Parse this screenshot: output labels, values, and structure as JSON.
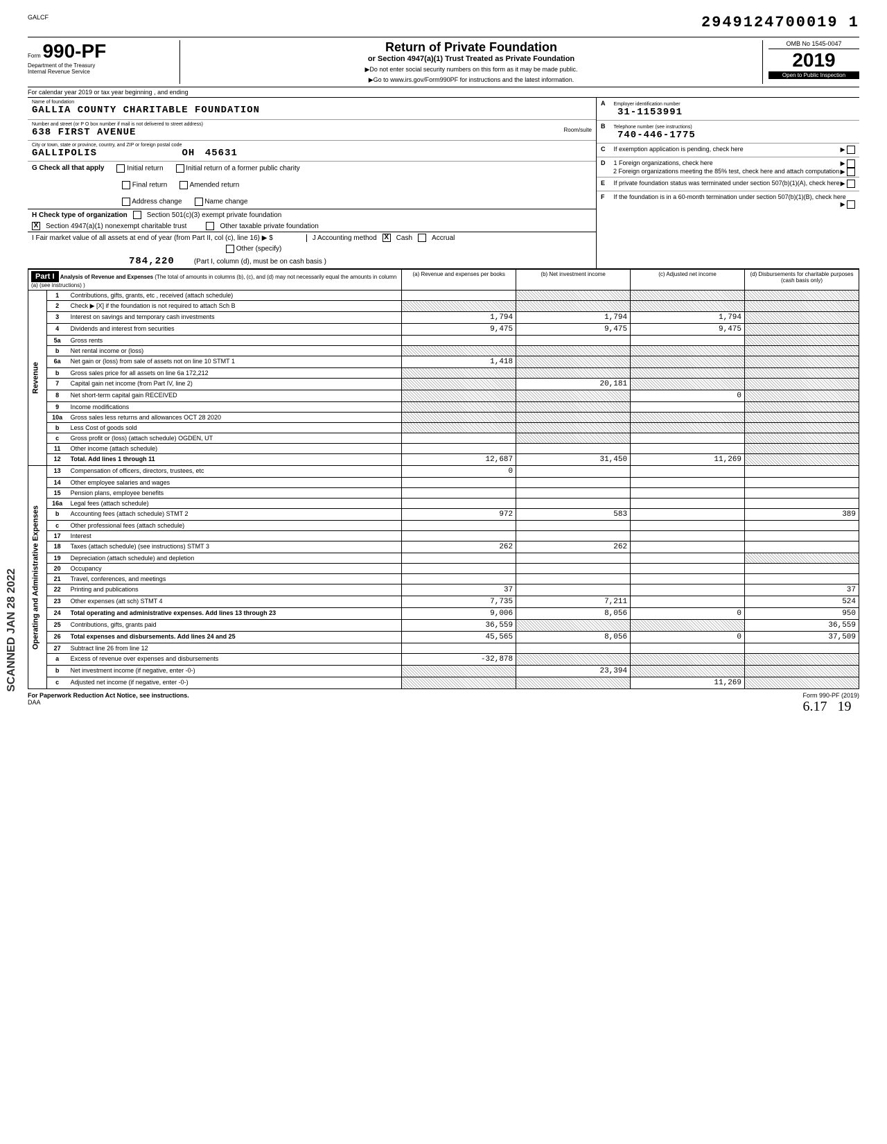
{
  "header": {
    "code_small": "GALCF",
    "tracking": "2949124700019 1",
    "form_prefix": "Form",
    "form_number": "990-PF",
    "dept": "Department of the Treasury",
    "irs": "Internal Revenue Service",
    "title": "Return of Private Foundation",
    "subtitle": "or Section 4947(a)(1) Trust Treated as Private Foundation",
    "instruction1": "▶Do not enter social security numbers on this form as it may be made public.",
    "instruction2": "▶Go to www.irs.gov/Form990PF for instructions and the latest information.",
    "omb": "OMB No 1545-0047",
    "year": "2019",
    "inspection": "Open to Public Inspection",
    "calendar": "For calendar year 2019 or tax year beginning                    , and ending"
  },
  "foundation": {
    "name_label": "Name of foundation",
    "name": "GALLIA COUNTY CHARITABLE FOUNDATION",
    "address_label": "Number and street (or P O box number if mail is not delivered to street address)",
    "address": "638 FIRST AVENUE",
    "city_label": "City or town, state or province, country, and ZIP or foreign postal code",
    "city": "GALLIPOLIS",
    "state": "OH",
    "zip": "45631",
    "room_label": "Room/suite",
    "ein_label": "Employer identification number",
    "ein_letter": "A",
    "ein": "31-1153991",
    "phone_label": "Telephone number (see instructions)",
    "phone_letter": "B",
    "phone": "740-446-1775",
    "exempt_label": "If exemption application is pending, check here",
    "exempt_letter": "C"
  },
  "checks": {
    "g_label": "G  Check all that apply",
    "g_items": [
      "Initial return",
      "Final return",
      "Address change",
      "Initial return of a former public charity",
      "Amended return",
      "Name change"
    ],
    "h_label": "H  Check type of organization",
    "h_items": [
      "Section 501(c)(3) exempt private foundation",
      "Section 4947(a)(1) nonexempt charitable trust",
      "Other taxable private foundation"
    ],
    "h_checked": 1,
    "i_label": "I   Fair market value of all assets at end of year (from Part II, col (c), line 16) ▶  $",
    "i_value": "784,220",
    "j_label": "J   Accounting method",
    "j_items": [
      "Cash",
      "Accrual",
      "Other (specify)"
    ],
    "j_note": "(Part I, column (d), must be on cash basis )",
    "d_letter": "D",
    "d1": "1  Foreign organizations, check here",
    "d2": "2  Foreign organizations meeting the 85% test, check here and attach computation",
    "e_letter": "E",
    "e_text": "If private foundation status was terminated under section 507(b)(1)(A), check here",
    "f_letter": "F",
    "f_text": "If the foundation is in a 60-month termination under section 507(b)(1)(B), check here"
  },
  "part1": {
    "header": "Part I",
    "analysis_title": "Analysis of Revenue and Expenses",
    "analysis_note": "(The total of amounts in columns (b), (c), and (d) may not necessarily equal the amounts in column (a) (see instructions) )",
    "col_a": "(a) Revenue and expenses per books",
    "col_b": "(b) Net investment income",
    "col_c": "(c) Adjusted net income",
    "col_d": "(d) Disbursements for charitable purposes (cash basis only)",
    "revenue_label": "Revenue",
    "opex_label": "Operating and Administrative Expenses"
  },
  "lines": [
    {
      "n": "1",
      "desc": "Contributions, gifts, grants, etc , received (attach schedule)",
      "a": "",
      "b": "shaded",
      "c": "shaded",
      "d": "shaded"
    },
    {
      "n": "2",
      "desc": "Check ▶  [X]  if the foundation is not required to attach Sch B",
      "a": "shaded",
      "b": "shaded",
      "c": "shaded",
      "d": "shaded"
    },
    {
      "n": "3",
      "desc": "Interest on savings and temporary cash investments",
      "a": "1,794",
      "b": "1,794",
      "c": "1,794",
      "d": "shaded"
    },
    {
      "n": "4",
      "desc": "Dividends and interest from securities",
      "a": "9,475",
      "b": "9,475",
      "c": "9,475",
      "d": "shaded"
    },
    {
      "n": "5a",
      "desc": "Gross rents",
      "a": "",
      "b": "",
      "c": "",
      "d": "shaded"
    },
    {
      "n": "b",
      "desc": "Net rental income or (loss)",
      "a": "shaded",
      "b": "shaded",
      "c": "shaded",
      "d": "shaded"
    },
    {
      "n": "6a",
      "desc": "Net gain or (loss) from sale of assets not on line 10    STMT 1",
      "a": "1,418",
      "b": "shaded",
      "c": "shaded",
      "d": "shaded"
    },
    {
      "n": "b",
      "desc": "Gross sales price for all assets on line 6a           172,212",
      "a": "shaded",
      "b": "shaded",
      "c": "shaded",
      "d": "shaded"
    },
    {
      "n": "7",
      "desc": "Capital gain net income (from Part IV, line 2)",
      "a": "shaded",
      "b": "20,181",
      "c": "shaded",
      "d": "shaded"
    },
    {
      "n": "8",
      "desc": "Net short-term capital gain                RECEIVED",
      "a": "shaded",
      "b": "shaded",
      "c": "0",
      "d": "shaded"
    },
    {
      "n": "9",
      "desc": "Income modifications",
      "a": "shaded",
      "b": "shaded",
      "c": "",
      "d": "shaded"
    },
    {
      "n": "10a",
      "desc": "Gross sales less returns and allowances    OCT 28 2020",
      "a": "shaded",
      "b": "shaded",
      "c": "shaded",
      "d": "shaded"
    },
    {
      "n": "b",
      "desc": "Less Cost of goods sold",
      "a": "shaded",
      "b": "shaded",
      "c": "shaded",
      "d": "shaded"
    },
    {
      "n": "c",
      "desc": "Gross profit or (loss) (attach schedule)     OGDEN, UT",
      "a": "",
      "b": "shaded",
      "c": "",
      "d": "shaded"
    },
    {
      "n": "11",
      "desc": "Other income (attach schedule)",
      "a": "",
      "b": "",
      "c": "",
      "d": "shaded"
    },
    {
      "n": "12",
      "desc": "Total. Add lines 1 through 11",
      "a": "12,687",
      "b": "31,450",
      "c": "11,269",
      "d": "shaded"
    },
    {
      "n": "13",
      "desc": "Compensation of officers, directors, trustees, etc",
      "a": "0",
      "b": "",
      "c": "",
      "d": ""
    },
    {
      "n": "14",
      "desc": "Other employee salaries and wages",
      "a": "",
      "b": "",
      "c": "",
      "d": ""
    },
    {
      "n": "15",
      "desc": "Pension plans, employee benefits",
      "a": "",
      "b": "",
      "c": "",
      "d": ""
    },
    {
      "n": "16a",
      "desc": "Legal fees (attach schedule)",
      "a": "",
      "b": "",
      "c": "",
      "d": ""
    },
    {
      "n": "b",
      "desc": "Accounting fees (attach schedule)       STMT 2",
      "a": "972",
      "b": "583",
      "c": "",
      "d": "389"
    },
    {
      "n": "c",
      "desc": "Other professional fees (attach schedule)",
      "a": "",
      "b": "",
      "c": "",
      "d": ""
    },
    {
      "n": "17",
      "desc": "Interest",
      "a": "",
      "b": "",
      "c": "",
      "d": ""
    },
    {
      "n": "18",
      "desc": "Taxes (attach schedule) (see instructions)    STMT 3",
      "a": "262",
      "b": "262",
      "c": "",
      "d": ""
    },
    {
      "n": "19",
      "desc": "Depreciation (attach schedule) and depletion",
      "a": "",
      "b": "",
      "c": "",
      "d": "shaded"
    },
    {
      "n": "20",
      "desc": "Occupancy",
      "a": "",
      "b": "",
      "c": "",
      "d": ""
    },
    {
      "n": "21",
      "desc": "Travel, conferences, and meetings",
      "a": "",
      "b": "",
      "c": "",
      "d": ""
    },
    {
      "n": "22",
      "desc": "Printing and publications",
      "a": "37",
      "b": "",
      "c": "",
      "d": "37"
    },
    {
      "n": "23",
      "desc": "Other expenses (att sch)              STMT 4",
      "a": "7,735",
      "b": "7,211",
      "c": "",
      "d": "524"
    },
    {
      "n": "24",
      "desc": "Total operating and administrative expenses. Add lines 13 through 23",
      "a": "9,006",
      "b": "8,056",
      "c": "0",
      "d": "950"
    },
    {
      "n": "25",
      "desc": "Contributions, gifts, grants paid",
      "a": "36,559",
      "b": "shaded",
      "c": "shaded",
      "d": "36,559"
    },
    {
      "n": "26",
      "desc": "Total expenses and disbursements. Add lines 24 and 25",
      "a": "45,565",
      "b": "8,056",
      "c": "0",
      "d": "37,509"
    },
    {
      "n": "27",
      "desc": "Subtract line 26 from line 12",
      "a": "",
      "b": "",
      "c": "",
      "d": ""
    },
    {
      "n": "a",
      "desc": "Excess of revenue over expenses and disbursements",
      "a": "-32,878",
      "b": "shaded",
      "c": "shaded",
      "d": "shaded"
    },
    {
      "n": "b",
      "desc": "Net investment income (if negative, enter -0-)",
      "a": "shaded",
      "b": "23,394",
      "c": "shaded",
      "d": "shaded"
    },
    {
      "n": "c",
      "desc": "Adjusted net income (if negative, enter -0-)",
      "a": "shaded",
      "b": "shaded",
      "c": "11,269",
      "d": "shaded"
    }
  ],
  "footer": {
    "left": "For Paperwork Reduction Act Notice, see instructions.",
    "daa": "DAA",
    "right": "Form 990-PF (2019)",
    "handwritten1": "6.17",
    "handwritten2": "19"
  },
  "stamps": {
    "scanned": "SCANNED JAN 28 2022"
  }
}
